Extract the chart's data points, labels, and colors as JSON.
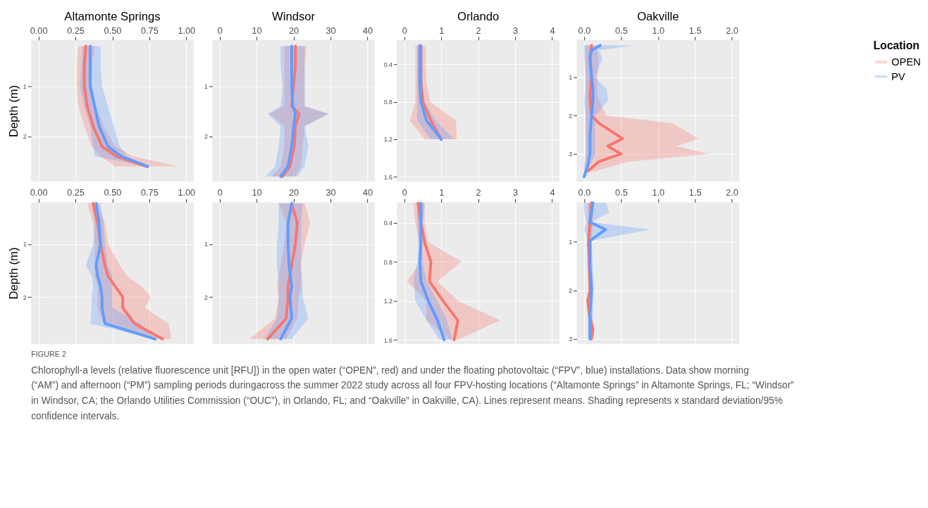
{
  "chart_data": [
    {
      "type": "line",
      "title": "Altamonte Springs",
      "ylabel": "Depth (m)",
      "orientation": "horizontal",
      "grid": true,
      "legend": "right",
      "legend_title": "Location",
      "xlim": [
        -0.05,
        1.05
      ],
      "xticks": [
        {
          "value": 0,
          "label": "0.00"
        },
        {
          "value": 0.25,
          "label": "0.25"
        },
        {
          "value": 0.5,
          "label": "0.50"
        },
        {
          "value": 0.75,
          "label": "0.75"
        },
        {
          "value": 1,
          "label": "1.00"
        }
      ],
      "ylim": [
        2.9,
        0.08
      ],
      "yticks": [
        1,
        2
      ],
      "series": [
        {
          "name": "OPEN",
          "color": "#f8766d",
          "x": [
            0.2,
            0.6,
            1.0,
            1.4,
            1.8,
            2.2,
            2.4,
            2.6
          ],
          "values": [
            0.32,
            0.31,
            0.31,
            0.33,
            0.37,
            0.43,
            0.53,
            0.73
          ],
          "lower": [
            0.27,
            0.26,
            0.26,
            0.27,
            0.31,
            0.36,
            0.42,
            0.52
          ],
          "upper": [
            0.38,
            0.36,
            0.36,
            0.39,
            0.44,
            0.52,
            0.64,
            0.95
          ]
        },
        {
          "name": "PV",
          "color": "#619cff",
          "x": [
            0.2,
            0.6,
            1.0,
            1.4,
            1.8,
            2.2,
            2.4,
            2.6
          ],
          "values": [
            0.35,
            0.35,
            0.35,
            0.38,
            0.41,
            0.47,
            0.56,
            0.74
          ],
          "lower": [
            0.3,
            0.29,
            0.28,
            0.31,
            0.35,
            0.37,
            0.38,
            0.74
          ],
          "upper": [
            0.42,
            0.42,
            0.43,
            0.47,
            0.51,
            0.55,
            0.6,
            0.74
          ]
        }
      ]
    },
    {
      "type": "line",
      "title": "Windsor",
      "orientation": "horizontal",
      "grid": true,
      "xlim": [
        -2,
        42
      ],
      "xticks": [
        0,
        10,
        20,
        30,
        40
      ],
      "ylim": [
        2.9,
        0.08
      ],
      "yticks": [
        1,
        2
      ],
      "series": [
        {
          "name": "OPEN",
          "color": "#f8766d",
          "x": [
            0.2,
            0.6,
            1.0,
            1.4,
            1.55,
            1.8,
            2.2,
            2.6,
            2.8
          ],
          "values": [
            20.5,
            20.5,
            20,
            19.5,
            21.5,
            20.5,
            20.2,
            19,
            17
          ],
          "lower": [
            17.5,
            17.5,
            17.5,
            17.5,
            13.5,
            17.5,
            17.5,
            16.5,
            14
          ],
          "upper": [
            23.5,
            23,
            23,
            23,
            29.5,
            23,
            22.5,
            22,
            20.5
          ]
        },
        {
          "name": "PV",
          "color": "#619cff",
          "x": [
            0.2,
            0.6,
            1.0,
            1.4,
            1.55,
            1.8,
            2.2,
            2.6,
            2.8
          ],
          "values": [
            19.5,
            19.5,
            19.5,
            19.8,
            20.5,
            20,
            19.5,
            18.5,
            16.5
          ],
          "lower": [
            16.5,
            16.5,
            17,
            16.5,
            13,
            16.5,
            16,
            15,
            12.5
          ],
          "upper": [
            23,
            23,
            23,
            23,
            29.5,
            23,
            24,
            23,
            21
          ]
        }
      ]
    },
    {
      "type": "line",
      "title": "Orlando",
      "orientation": "horizontal",
      "grid": true,
      "xlim": [
        -0.2,
        4.2
      ],
      "xticks": [
        0,
        1,
        2,
        3,
        4
      ],
      "ylim": [
        1.65,
        0.14
      ],
      "yticks": [
        0.4,
        0.8,
        1.2,
        1.6
      ],
      "series": [
        {
          "name": "OPEN",
          "color": "#f8766d",
          "x": [
            0.2,
            0.4,
            0.6,
            0.8,
            1.0,
            1.2
          ],
          "values": [
            0.45,
            0.45,
            0.45,
            0.5,
            0.72,
            1.0
          ],
          "lower": [
            0.3,
            0.3,
            0.3,
            0.3,
            0.15,
            0.55
          ],
          "upper": [
            0.58,
            0.58,
            0.6,
            0.7,
            1.4,
            1.42
          ]
        },
        {
          "name": "PV",
          "color": "#619cff",
          "x": [
            0.2,
            0.4,
            0.6,
            0.8,
            1.0,
            1.2
          ],
          "values": [
            0.42,
            0.42,
            0.42,
            0.45,
            0.6,
            1.0
          ],
          "lower": [
            0.35,
            0.35,
            0.35,
            0.35,
            0.35,
            0.7
          ],
          "upper": [
            0.5,
            0.5,
            0.5,
            0.55,
            0.85,
            1.35
          ]
        }
      ]
    },
    {
      "type": "line",
      "title": "Oakville",
      "orientation": "horizontal",
      "grid": true,
      "xlim": [
        -0.1,
        2.1
      ],
      "xticks": [
        {
          "value": 0,
          "label": "0.0"
        },
        {
          "value": 0.5,
          "label": "0.5"
        },
        {
          "value": 1,
          "label": "1.0"
        },
        {
          "value": 1.5,
          "label": "1.5"
        },
        {
          "value": 2,
          "label": "2.0"
        }
      ],
      "ylim": [
        3.72,
        0.03
      ],
      "yticks": [
        1,
        2,
        3
      ],
      "series": [
        {
          "name": "OPEN",
          "color": "#f8766d",
          "x": [
            0.17,
            0.5,
            1.0,
            1.5,
            2.0,
            2.2,
            2.6,
            2.8,
            3.0,
            3.2,
            3.45
          ],
          "values": [
            0.1,
            0.08,
            0.1,
            0.08,
            0.1,
            0.2,
            0.52,
            0.32,
            0.5,
            0.2,
            0.05
          ],
          "lower": [
            0.02,
            0.02,
            0.02,
            0.02,
            0.02,
            0.02,
            0.02,
            0.02,
            0.02,
            0.02,
            0.0
          ],
          "upper": [
            0.15,
            0.2,
            0.18,
            0.18,
            0.3,
            1.2,
            1.55,
            1.25,
            1.7,
            0.6,
            0.15
          ]
        },
        {
          "name": "PV",
          "color": "#619cff",
          "x": [
            0.17,
            0.3,
            0.5,
            1.0,
            1.3,
            1.6,
            2.0,
            2.5,
            3.0,
            3.3,
            3.6
          ],
          "values": [
            0.22,
            0.1,
            0.08,
            0.1,
            0.12,
            0.12,
            0.1,
            0.08,
            0.08,
            0.05,
            0.0
          ],
          "lower": [
            0.0,
            0.0,
            0.0,
            0.02,
            0.02,
            0.0,
            0.02,
            0.02,
            0.02,
            0.0,
            0.0
          ],
          "upper": [
            0.68,
            0.2,
            0.25,
            0.15,
            0.3,
            0.33,
            0.15,
            0.15,
            0.15,
            0.08,
            0.0
          ]
        }
      ]
    },
    {
      "type": "line",
      "ylabel": "Depth (m)",
      "orientation": "horizontal",
      "grid": true,
      "xlim": [
        -0.05,
        1.05
      ],
      "xticks": [
        {
          "value": 0,
          "label": "0.00"
        },
        {
          "value": 0.25,
          "label": "0.25"
        },
        {
          "value": 0.5,
          "label": "0.50"
        },
        {
          "value": 0.75,
          "label": "0.75"
        },
        {
          "value": 1,
          "label": "1.00"
        }
      ],
      "ylim": [
        2.88,
        0.21
      ],
      "yticks": [
        1,
        2
      ],
      "series": [
        {
          "name": "OPEN",
          "color": "#f8766d",
          "x": [
            0.23,
            0.6,
            1.0,
            1.4,
            1.6,
            1.8,
            2.0,
            2.2,
            2.5,
            2.79
          ],
          "values": [
            0.37,
            0.4,
            0.42,
            0.45,
            0.47,
            0.52,
            0.57,
            0.57,
            0.65,
            0.84
          ],
          "lower": [
            0.33,
            0.37,
            0.38,
            0.38,
            0.38,
            0.4,
            0.4,
            0.4,
            0.44,
            0.8
          ],
          "upper": [
            0.4,
            0.45,
            0.47,
            0.55,
            0.6,
            0.7,
            0.76,
            0.72,
            0.88,
            0.9
          ]
        },
        {
          "name": "PV",
          "color": "#619cff",
          "x": [
            0.23,
            0.6,
            1.0,
            1.4,
            1.6,
            1.8,
            2.0,
            2.2,
            2.5,
            2.79
          ],
          "values": [
            0.39,
            0.41,
            0.42,
            0.39,
            0.4,
            0.42,
            0.43,
            0.43,
            0.45,
            0.79
          ],
          "lower": [
            0.36,
            0.38,
            0.37,
            0.32,
            0.36,
            0.37,
            0.36,
            0.36,
            0.35,
            0.79
          ],
          "upper": [
            0.42,
            0.44,
            0.45,
            0.47,
            0.5,
            0.5,
            0.5,
            0.5,
            0.69,
            0.79
          ]
        }
      ]
    },
    {
      "type": "line",
      "orientation": "horizontal",
      "grid": true,
      "xlim": [
        -2,
        42
      ],
      "xticks": [
        0,
        10,
        20,
        30,
        40
      ],
      "ylim": [
        2.88,
        0.21
      ],
      "yticks": [
        1,
        2
      ],
      "series": [
        {
          "name": "OPEN",
          "color": "#f8766d",
          "x": [
            0.23,
            0.6,
            1.0,
            1.4,
            1.8,
            2.0,
            2.4,
            2.79
          ],
          "values": [
            19.5,
            21,
            20.5,
            19.5,
            18.5,
            18.5,
            18,
            13
          ],
          "lower": [
            16,
            18,
            17.5,
            16.5,
            15.5,
            16,
            15,
            8
          ],
          "upper": [
            23,
            24.5,
            23,
            22,
            22,
            21.5,
            21,
            18
          ]
        },
        {
          "name": "PV",
          "color": "#619cff",
          "x": [
            0.23,
            0.6,
            1.0,
            1.4,
            1.8,
            2.0,
            2.4,
            2.79
          ],
          "values": [
            19.5,
            18.5,
            18.5,
            18.8,
            19.5,
            19,
            19.5,
            16.5
          ],
          "lower": [
            16,
            16,
            15.5,
            15.5,
            16,
            16,
            15.5,
            12
          ],
          "upper": [
            22.5,
            22,
            22,
            22,
            22.5,
            22.5,
            24,
            19.5
          ]
        }
      ]
    },
    {
      "type": "line",
      "orientation": "horizontal",
      "grid": true,
      "xlim": [
        -0.2,
        4.2
      ],
      "xticks": [
        0,
        1,
        2,
        3,
        4
      ],
      "ylim": [
        1.64,
        0.19
      ],
      "yticks": [
        0.4,
        0.8,
        1.2,
        1.6
      ],
      "series": [
        {
          "name": "OPEN",
          "color": "#f8766d",
          "x": [
            0.2,
            0.4,
            0.6,
            0.8,
            1.0,
            1.2,
            1.4,
            1.6
          ],
          "values": [
            0.37,
            0.45,
            0.55,
            0.72,
            0.68,
            1.05,
            1.45,
            1.35
          ],
          "lower": [
            0.25,
            0.3,
            0.4,
            0.45,
            0.07,
            0.6,
            0.6,
            1.25
          ],
          "upper": [
            0.55,
            0.55,
            0.65,
            1.55,
            0.9,
            1.45,
            2.6,
            1.45
          ]
        },
        {
          "name": "PV",
          "color": "#619cff",
          "x": [
            0.2,
            0.4,
            0.6,
            0.8,
            1.0,
            1.2,
            1.4,
            1.6
          ],
          "values": [
            0.45,
            0.45,
            0.45,
            0.42,
            0.45,
            0.65,
            0.9,
            1.08
          ],
          "lower": [
            0.35,
            0.35,
            0.38,
            0.35,
            0.25,
            0.3,
            0.6,
            0.95
          ],
          "upper": [
            0.55,
            0.5,
            0.48,
            0.5,
            0.6,
            0.9,
            1.15,
            1.3
          ]
        }
      ]
    },
    {
      "type": "line",
      "orientation": "horizontal",
      "grid": true,
      "xlim": [
        -0.1,
        2.1
      ],
      "xticks": [
        {
          "value": 0,
          "label": "0.0"
        },
        {
          "value": 0.5,
          "label": "0.5"
        },
        {
          "value": 1,
          "label": "1.0"
        },
        {
          "value": 1.5,
          "label": "1.5"
        },
        {
          "value": 2,
          "label": "2.0"
        }
      ],
      "ylim": [
        3.1,
        0.19
      ],
      "yticks": [
        1,
        2,
        3
      ],
      "series": [
        {
          "name": "OPEN",
          "color": "#f8766d",
          "x": [
            0.2,
            0.6,
            1.0,
            1.5,
            2.0,
            2.2,
            2.5,
            2.8,
            3.0
          ],
          "values": [
            0.1,
            0.08,
            0.06,
            0.07,
            0.08,
            0.05,
            0.07,
            0.12,
            0.1
          ],
          "lower": [
            0.05,
            0.05,
            0.04,
            0.05,
            0.06,
            0.04,
            0.05,
            0.1,
            0.07
          ],
          "upper": [
            0.13,
            0.12,
            0.1,
            0.1,
            0.13,
            0.08,
            0.1,
            0.14,
            0.12
          ]
        },
        {
          "name": "PV",
          "color": "#619cff",
          "x": [
            0.2,
            0.4,
            0.6,
            0.75,
            0.98,
            1.5,
            2.0,
            2.5,
            3.0
          ],
          "values": [
            0.12,
            0.1,
            0.08,
            0.29,
            0.08,
            0.08,
            0.1,
            0.08,
            0.08
          ],
          "lower": [
            0.0,
            0.0,
            0.03,
            0.0,
            0.05,
            0.05,
            0.06,
            0.05,
            0.05
          ],
          "upper": [
            0.3,
            0.34,
            0.1,
            0.9,
            0.1,
            0.12,
            0.13,
            0.12,
            0.1
          ]
        }
      ]
    },
    {
      "type": "other",
      "annotations": [
        "FIGURE 2",
        "Chlorophyll-a levels (relative fluorescence unit [RFU]) in the open water (“OPEN”, red) and under the floating photovoltaic (“FPV”, blue) installations. Data show morning (“AM”) and afternoon (“PM”) sampling periods duringacross the summer 2022 study across all four FPV-hosting locations (“Altamonte Springs” in Altamonte Springs, FL; “Windsor” in Windsor, CA; the Orlando Utilities Commission (“OUC”), in Orlando, FL; and “Oakville” in Oakville, CA). Lines represent means. Shading represents x standard deviation/95% confidence intervals."
      ]
    }
  ]
}
